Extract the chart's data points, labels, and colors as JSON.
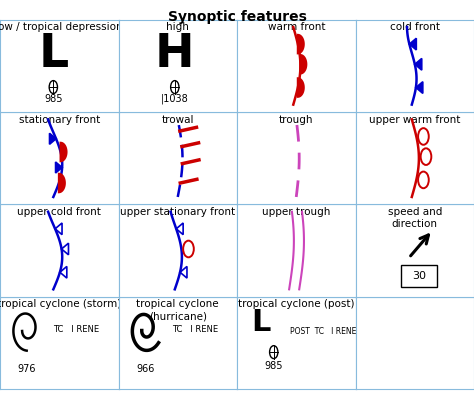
{
  "title": "Synoptic features",
  "bg_color": "#ffffff",
  "grid_color": "#88bbdd",
  "title_fontsize": 10,
  "label_fontsize": 7.5,
  "figsize": [
    4.74,
    3.93
  ],
  "dpi": 100,
  "nrows": 4,
  "ncols": 4,
  "cell_labels": [
    [
      "low / tropical depression",
      "high",
      "warm front",
      "cold front"
    ],
    [
      "stationary front",
      "trowal",
      "trough",
      "upper warm front"
    ],
    [
      "upper cold front",
      "upper stationary front",
      "upper trough",
      "speed and\ndirection"
    ],
    [
      "tropical cyclone (storm)",
      "tropical cyclone\n(hurricane)",
      "tropical cyclone (post)",
      ""
    ]
  ],
  "warm_color": "#cc0000",
  "cold_color": "#0000cc",
  "trough_color": "#cc44bb",
  "black": "#000000"
}
